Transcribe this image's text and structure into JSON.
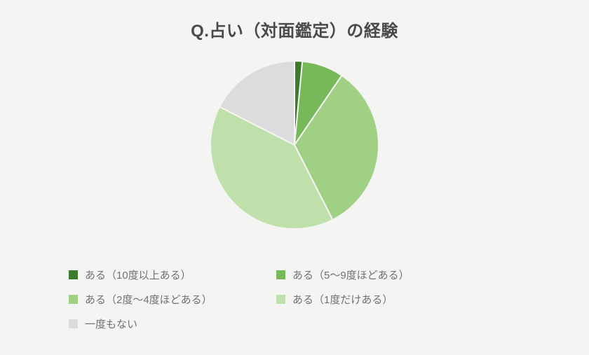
{
  "chart": {
    "type": "pie",
    "title": "Q.占い（対面鑑定）の経験",
    "title_fontsize": 24,
    "title_color": "#4a4a4a",
    "background_color": "#f4f4f2",
    "radius": 120,
    "gap_color": "#f4f4f2",
    "gap_width": 2,
    "slices": [
      {
        "label": "ある（10度以上ある）",
        "value": 1.5,
        "color": "#3c7a2e"
      },
      {
        "label": "ある（5〜9度ほどある）",
        "value": 8,
        "color": "#77b859"
      },
      {
        "label": "ある（2度〜4度ほどある）",
        "value": 33,
        "color": "#9fd083"
      },
      {
        "label": "ある（1度だけある）",
        "value": 40,
        "color": "#c0e0ab"
      },
      {
        "label": "一度もない",
        "value": 17.5,
        "color": "#dcdcdc"
      }
    ],
    "legend_fontsize": 15,
    "legend_color": "#707070"
  }
}
